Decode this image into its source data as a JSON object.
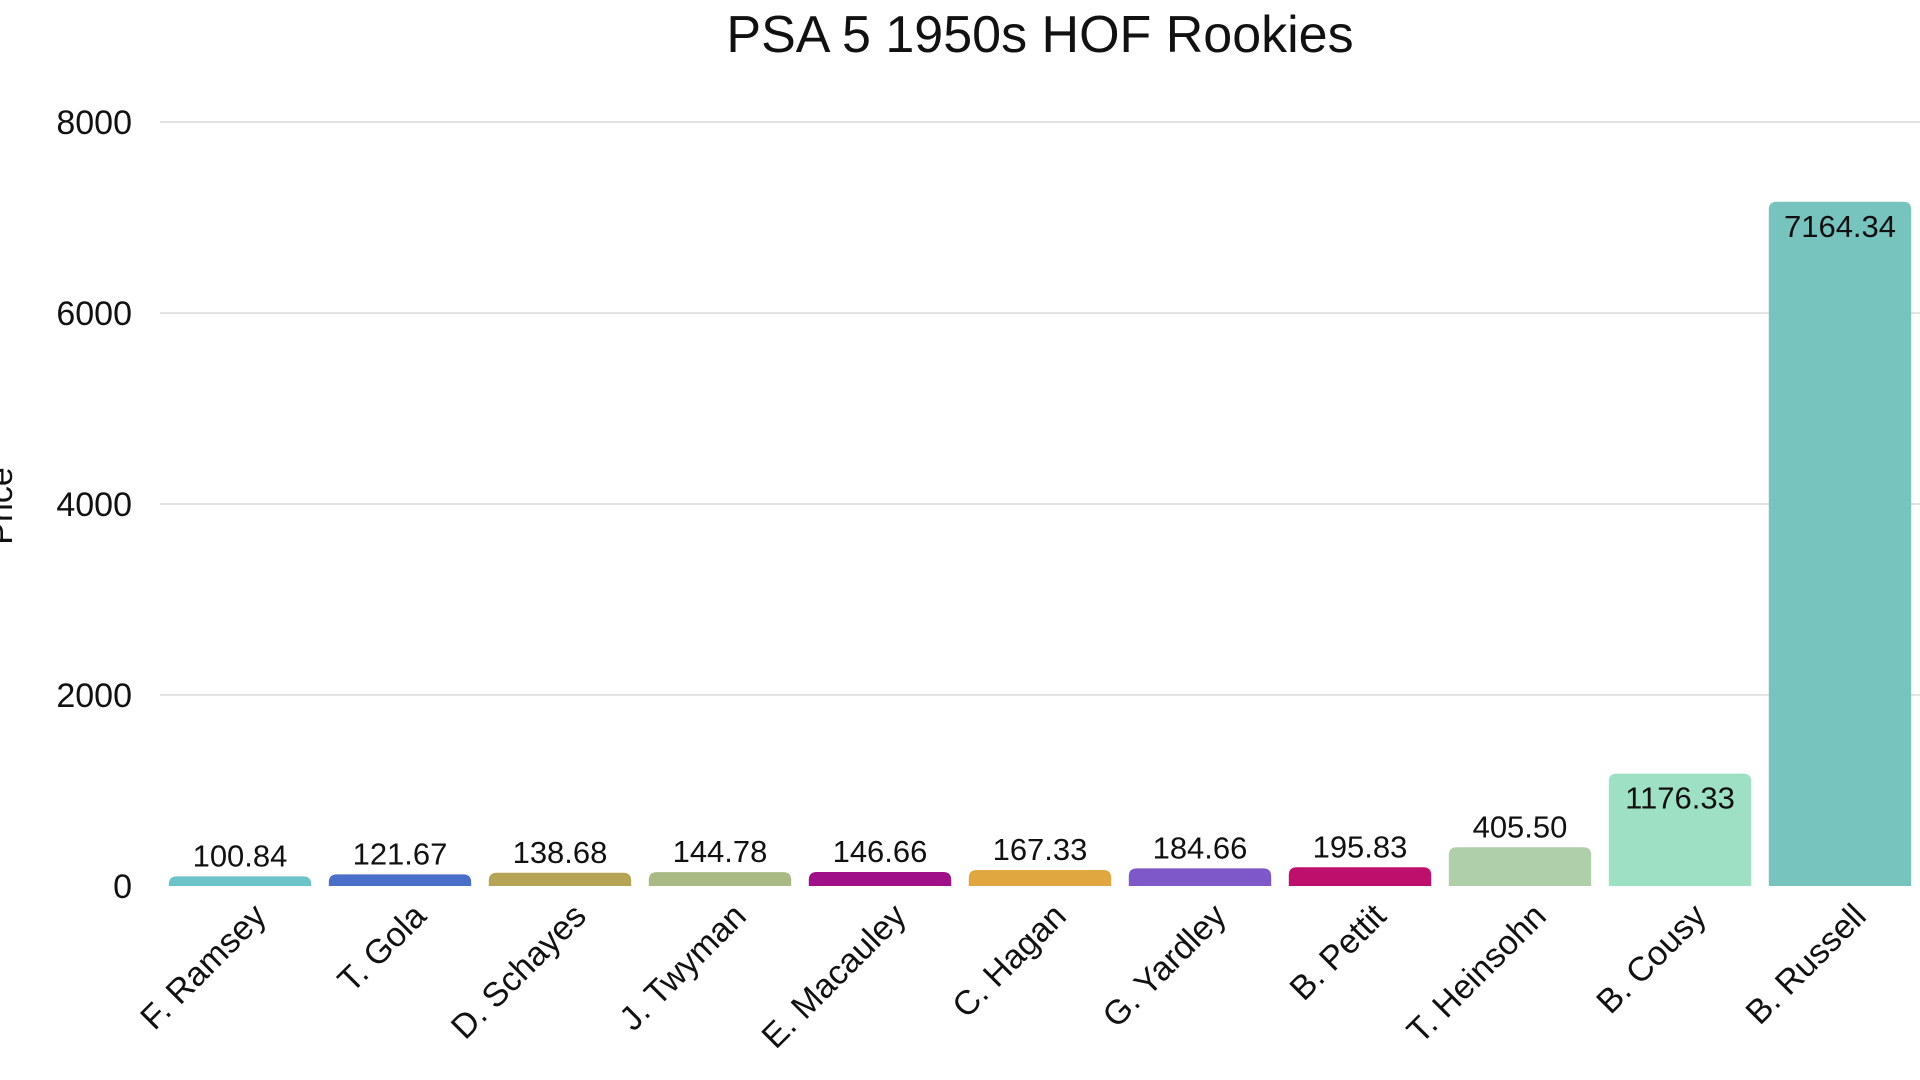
{
  "chart_data": {
    "type": "bar",
    "title": "PSA 5 1950s HOF Rookies",
    "xlabel": "",
    "ylabel": "Price",
    "ylim": [
      0,
      8000
    ],
    "yticks": [
      0,
      2000,
      4000,
      6000,
      8000
    ],
    "grid": true,
    "legend": "none",
    "categories": [
      "F. Ramsey",
      "T. Gola",
      "D. Schayes",
      "J. Twyman",
      "E. Macauley",
      "C. Hagan",
      "G. Yardley",
      "B. Pettit",
      "T. Heinsohn",
      "B. Cousy",
      "B. Russell"
    ],
    "values": [
      100.84,
      121.67,
      138.68,
      144.78,
      146.66,
      167.33,
      184.66,
      195.83,
      405.5,
      1176.33,
      7164.34
    ],
    "data_labels": [
      "100.84",
      "121.67",
      "138.68",
      "144.78",
      "146.66",
      "167.33",
      "184.66",
      "195.83",
      "405.50",
      "1176.33",
      "7164.34"
    ],
    "colors": [
      "#6cc3c8",
      "#4a6fc8",
      "#b5a356",
      "#a9ba84",
      "#a01088",
      "#e0a640",
      "#7e57c9",
      "#bf0f6c",
      "#afcfa9",
      "#9ee0c3",
      "#77c3bd"
    ]
  }
}
